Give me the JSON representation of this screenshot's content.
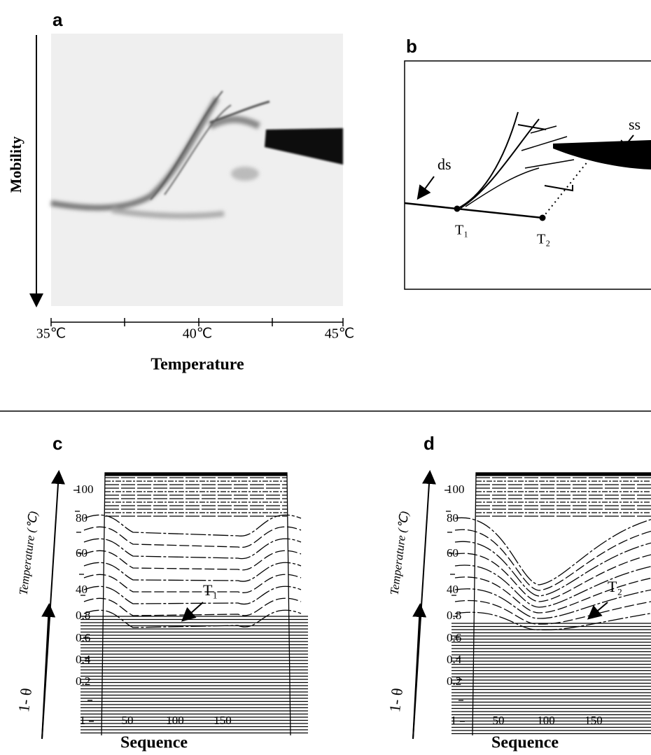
{
  "panels": [
    {
      "label": "a",
      "y_axis_label": "Mobility",
      "x_axis_label": "Temperature",
      "x_ticks": [
        "35℃",
        "40℃",
        "45℃"
      ]
    },
    {
      "label": "b",
      "annotations": [
        "ss",
        "ds",
        "T₁",
        "T₂"
      ]
    },
    {
      "label": "c",
      "y_axis_label_top": "Temperature (℃)",
      "y_axis_label_bottom": "1- θ",
      "y_ticks": [
        "100",
        "80",
        "60",
        "40",
        "0.8",
        "0.6",
        "0.4",
        "0.2"
      ],
      "x_ticks": [
        "1",
        "50",
        "100",
        "150"
      ],
      "x_axis_label": "Sequence",
      "annotation": "T₁"
    },
    {
      "label": "d",
      "y_axis_label_top": "Temperature (℃)",
      "y_axis_label_bottom": "1- θ",
      "y_ticks": [
        "100",
        "80",
        "60",
        "40",
        "0.8",
        "0.6",
        "0.4",
        "0.2"
      ],
      "x_ticks": [
        "1",
        "50",
        "100",
        "150"
      ],
      "x_axis_label": "Sequence",
      "annotation": "T₂"
    }
  ]
}
